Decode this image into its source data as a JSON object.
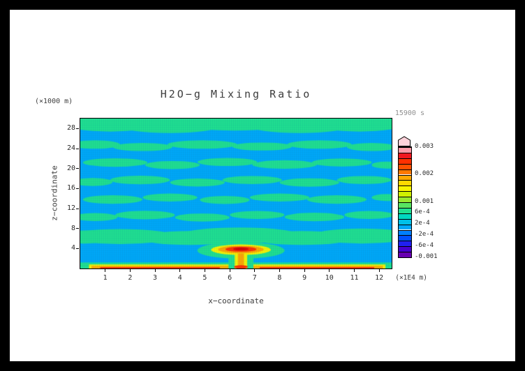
{
  "chart": {
    "title": "H2O−g Mixing Ratio",
    "time_label": "15900 s",
    "time_color": "#8f8f8f",
    "y_unit": "(×1000 m)",
    "x_unit": "(×1E4 m)",
    "x_label": "x−coordinate",
    "y_label": "z−coordinate"
  },
  "chart_data": {
    "type": "heatmap",
    "title": "H2O−g Mixing Ratio",
    "time": "15900 s",
    "xlabel": "x−coordinate",
    "ylabel": "z−coordinate",
    "x_unit": "(×1E4 m)",
    "y_unit": "(×1000 m)",
    "x_range": [
      0,
      12.5
    ],
    "z_range": [
      0,
      30
    ],
    "x_ticks": [
      1,
      2,
      3,
      4,
      5,
      6,
      7,
      8,
      9,
      10,
      11,
      12
    ],
    "z_ticks": [
      4,
      8,
      12,
      16,
      20,
      24,
      28
    ],
    "colorbar": {
      "min": -0.001,
      "max": 0.003,
      "cell_size": 0.0002,
      "labels": [
        {
          "text": "0.003",
          "level": 20
        },
        {
          "text": "0.002",
          "level": 15
        },
        {
          "text": "0.001",
          "level": 10
        },
        {
          "text": "6e-4",
          "level": 8
        },
        {
          "text": "2e-4",
          "level": 6
        },
        {
          "text": "-2e-4",
          "level": 4
        },
        {
          "text": "-6e-4",
          "level": 2
        },
        {
          "text": "-0.001",
          "level": 0
        }
      ],
      "cell_colors": [
        "#6800b0",
        "#4800d0",
        "#2020f0",
        "#0050ff",
        "#0080ff",
        "#00a8f8",
        "#00c0e8",
        "#00d8c0",
        "#20e090",
        "#58e460",
        "#98e830",
        "#d0f000",
        "#f8f400",
        "#ffd800",
        "#ffa800",
        "#ff7800",
        "#ff5000",
        "#ff3000",
        "#f01820",
        "#ff9aa8"
      ],
      "overflow_color": "#ffd2da"
    },
    "field": {
      "background": "#00a8f8",
      "blob_color": "#20e090",
      "blobs": [
        [
          1.2,
          28.9,
          1.8,
          1.5
        ],
        [
          3.6,
          28.5,
          2.0,
          1.4
        ],
        [
          6.2,
          29.1,
          2.2,
          1.5
        ],
        [
          8.8,
          28.5,
          2.0,
          1.4
        ],
        [
          11.2,
          28.9,
          1.8,
          1.5
        ],
        [
          0.6,
          24.8,
          1.0,
          0.85
        ],
        [
          2.5,
          24.3,
          1.2,
          0.8
        ],
        [
          4.9,
          24.8,
          1.4,
          0.85
        ],
        [
          7.3,
          24.4,
          1.2,
          0.8
        ],
        [
          9.6,
          24.8,
          1.3,
          0.85
        ],
        [
          11.7,
          24.3,
          1.0,
          0.8
        ],
        [
          1.4,
          21.2,
          1.3,
          0.85
        ],
        [
          3.7,
          20.7,
          1.1,
          0.8
        ],
        [
          5.9,
          21.3,
          1.2,
          0.8
        ],
        [
          8.2,
          20.8,
          1.3,
          0.85
        ],
        [
          10.5,
          21.2,
          1.2,
          0.8
        ],
        [
          12.3,
          20.7,
          0.6,
          0.7
        ],
        [
          0.5,
          17.3,
          0.8,
          0.8
        ],
        [
          2.4,
          17.7,
          1.2,
          0.85
        ],
        [
          4.7,
          17.2,
          1.1,
          0.8
        ],
        [
          6.9,
          17.7,
          1.2,
          0.8
        ],
        [
          9.2,
          17.2,
          1.2,
          0.85
        ],
        [
          11.4,
          17.7,
          1.1,
          0.8
        ],
        [
          1.3,
          13.8,
          1.2,
          0.85
        ],
        [
          3.6,
          14.2,
          1.1,
          0.8
        ],
        [
          5.8,
          13.7,
          1.0,
          0.8
        ],
        [
          8.0,
          14.2,
          1.2,
          0.8
        ],
        [
          10.3,
          13.8,
          1.2,
          0.85
        ],
        [
          12.3,
          14.2,
          0.6,
          0.7
        ],
        [
          0.6,
          10.3,
          0.9,
          0.8
        ],
        [
          2.6,
          10.7,
          1.2,
          0.85
        ],
        [
          4.9,
          10.2,
          1.1,
          0.8
        ],
        [
          7.1,
          10.7,
          1.1,
          0.8
        ],
        [
          9.4,
          10.3,
          1.2,
          0.85
        ],
        [
          11.6,
          10.7,
          1.0,
          0.8
        ],
        [
          1.6,
          6.4,
          2.2,
          1.5
        ],
        [
          4.4,
          6.1,
          2.0,
          1.4
        ],
        [
          6.4,
          6.6,
          2.4,
          1.6
        ],
        [
          8.9,
          6.1,
          2.0,
          1.4
        ],
        [
          11.3,
          6.5,
          2.0,
          1.5
        ],
        [
          0.2,
          6.3,
          0.9,
          1.3
        ]
      ],
      "layers": [
        {
          "color": "#20e090",
          "shapes": [
            {
              "t": "r",
              "x0": 0,
              "z0": 28.8,
              "x1": 12.5,
              "z1": 30
            },
            {
              "t": "r",
              "x0": 0,
              "z0": 0,
              "x1": 12.5,
              "z1": 1.2
            }
          ]
        },
        {
          "color": "#f8f400",
          "shapes": [
            {
              "t": "r",
              "x0": 0.35,
              "z0": 0,
              "x1": 12.25,
              "z1": 0.8
            }
          ]
        },
        {
          "color": "#ffa800",
          "shapes": [
            {
              "t": "r",
              "x0": 0.45,
              "z0": 0,
              "x1": 12.15,
              "z1": 0.5
            }
          ]
        },
        {
          "color": "#ff3000",
          "shapes": [
            {
              "t": "r",
              "x0": 0.8,
              "z0": 0,
              "x1": 5.6,
              "z1": 0.28
            },
            {
              "t": "r",
              "x0": 7.2,
              "z0": 0,
              "x1": 11.8,
              "z1": 0.28
            }
          ]
        },
        {
          "color": "#20e090",
          "shapes": [
            {
              "t": "e",
              "x": 6.45,
              "z": 3.6,
              "rx": 1.75,
              "rz": 1.65
            },
            {
              "t": "r",
              "x0": 5.95,
              "z0": 0,
              "x1": 6.95,
              "z1": 3.0
            }
          ]
        },
        {
          "color": "#f8f400",
          "shapes": [
            {
              "t": "e",
              "x": 6.45,
              "z": 3.75,
              "rx": 1.2,
              "rz": 1.05
            },
            {
              "t": "r",
              "x0": 6.2,
              "z0": 0,
              "x1": 6.7,
              "z1": 3.2
            }
          ]
        },
        {
          "color": "#ffa800",
          "shapes": [
            {
              "t": "e",
              "x": 6.45,
              "z": 3.8,
              "rx": 0.92,
              "rz": 0.75
            },
            {
              "t": "r",
              "x0": 6.33,
              "z0": 0,
              "x1": 6.57,
              "z1": 3.0
            }
          ]
        },
        {
          "color": "#ff3000",
          "shapes": [
            {
              "t": "e",
              "x": 6.45,
              "z": 3.85,
              "rx": 0.62,
              "rz": 0.5
            },
            {
              "t": "e",
              "x": 6.45,
              "z": 0.3,
              "rx": 0.28,
              "rz": 0.35
            }
          ]
        },
        {
          "color": "#d80000",
          "shapes": [
            {
              "t": "e",
              "x": 6.45,
              "z": 3.9,
              "rx": 0.32,
              "rz": 0.27
            }
          ]
        }
      ]
    },
    "mesh": {
      "spacing": 3,
      "color": "#1060a0",
      "v_alpha": 0.1,
      "h_alpha": 0.06
    }
  }
}
